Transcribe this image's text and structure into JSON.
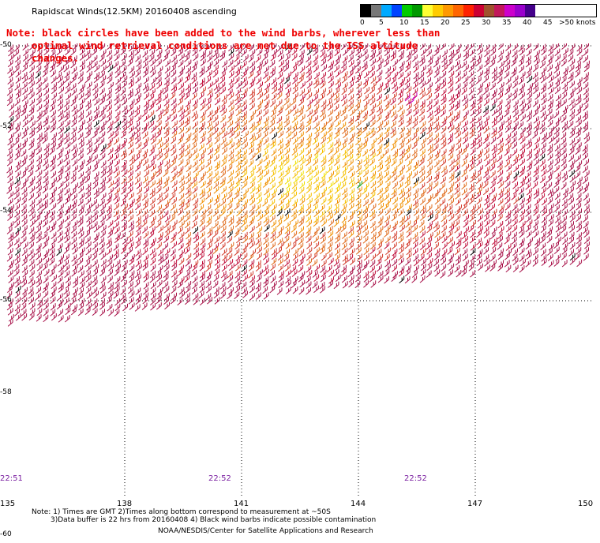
{
  "header": {
    "title": "Rapidscat Winds(12.5KM) 20160408 ascending"
  },
  "note": {
    "line1": "Note: black circles have been added to the wind barbs, wherever less than",
    "line2": "optimal wind retrieval conditions are met due to the ISS altitude changes."
  },
  "color_scale": {
    "colors": [
      "#000000",
      "#777777",
      "#00aaff",
      "#0044ff",
      "#00cc00",
      "#009900",
      "#ffff33",
      "#ffcc00",
      "#ff9900",
      "#ff6600",
      "#ff2200",
      "#cc0033",
      "#a0522d",
      "#c2185b",
      "#cc00cc",
      "#9900cc",
      "#44008a"
    ],
    "labels": [
      "0",
      "5",
      "10",
      "15",
      "20",
      "25",
      "30",
      "35",
      "40",
      "45",
      ">50 knots"
    ]
  },
  "map": {
    "lat_labels": [
      "-50",
      "-52",
      "-54",
      "-56",
      "-58",
      "-60"
    ],
    "lon_labels": [
      "135",
      "138",
      "141",
      "144",
      "147",
      "150"
    ],
    "time_labels": [
      "22:51",
      "22:52",
      "22:52"
    ],
    "wind_palette": [
      "#f0e000",
      "#f5c000",
      "#f09000",
      "#e06a1a",
      "#d23a2a",
      "#c0103c",
      "#a81048"
    ],
    "contaminated_color": "#000000",
    "low_speed_color": "#009900",
    "high_speed_color": "#cc00cc"
  },
  "footer": {
    "line1": "Note: 1) Times are GMT 2)Times along bottom correspond to measurement at ~50S",
    "line2": "3)Data buffer is 22 hrs from 20160408 4) Black wind barbs indicate possible contamination",
    "line3": "NOAA/NESDIS/Center for Satellite Applications and Research"
  }
}
